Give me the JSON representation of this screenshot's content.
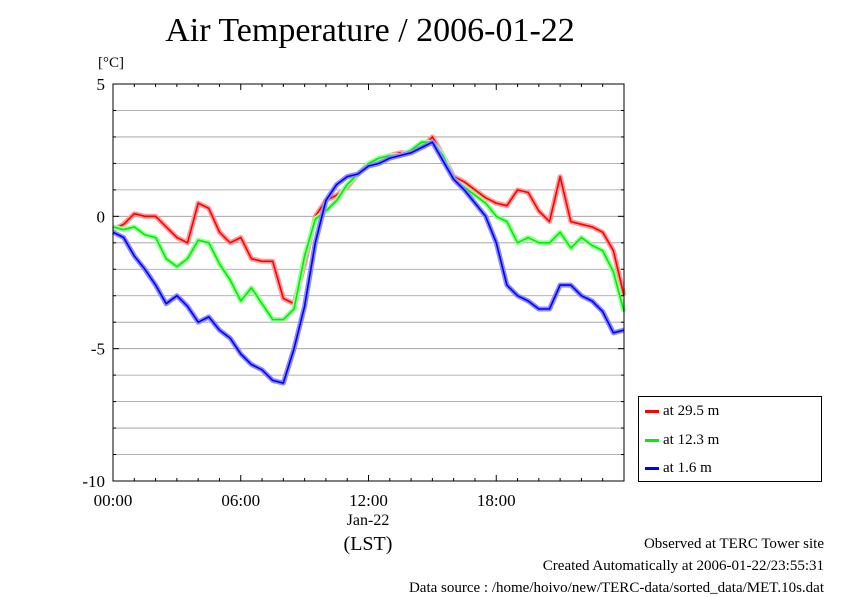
{
  "header": {
    "title": "Air Temperature / 2006-01-22",
    "unit": "[°C]"
  },
  "footer": {
    "line1": "Observed at TERC Tower site",
    "line2": "Created Automatically at 2006-01-22/23:55:31",
    "line3": "Data source : /home/hoivo/new/TERC-data/sorted_data/MET.10s.dat"
  },
  "axis": {
    "date_label": "Jan-22",
    "time_zone_label": "(LST)"
  },
  "legend": {
    "items": [
      {
        "label": "at 29.5 m",
        "color": "#ff0000"
      },
      {
        "label": "at 12.3 m",
        "color": "#00ee00"
      },
      {
        "label": "at 1.6 m",
        "color": "#0000ff"
      }
    ]
  },
  "chart_data": {
    "type": "line",
    "title": "Air Temperature / 2006-01-22",
    "ylabel": "[°C]",
    "xlabel": "(LST)",
    "xlim": [
      0,
      24
    ],
    "ylim": [
      -10,
      5
    ],
    "x_ticks": [
      0,
      6,
      12,
      18
    ],
    "x_tick_labels": [
      "00:00",
      "06:00",
      "12:00",
      "18:00"
    ],
    "y_ticks": [
      5,
      0,
      -5,
      -10
    ],
    "y_tick_labels": [
      "5",
      "0",
      "-5",
      "-10"
    ],
    "grid": true,
    "legend_position": "right-bottom-outside",
    "x": [
      0,
      0.5,
      1,
      1.5,
      2,
      2.5,
      3,
      3.5,
      4,
      4.5,
      5,
      5.5,
      6,
      6.5,
      7,
      7.5,
      8,
      8.5,
      9,
      9.5,
      10,
      10.5,
      11,
      11.5,
      12,
      12.5,
      13,
      13.5,
      14,
      14.5,
      15,
      15.5,
      16,
      16.5,
      17,
      17.5,
      18,
      18.5,
      19,
      19.5,
      20,
      20.5,
      21,
      21.5,
      22,
      22.5,
      23,
      23.5,
      24
    ],
    "series": [
      {
        "name": "at 29.5 m",
        "color": "#ff0000",
        "values": [
          -0.5,
          -0.3,
          0.1,
          0.0,
          0.0,
          -0.4,
          -0.8,
          -1.0,
          0.5,
          0.3,
          -0.6,
          -1.0,
          -0.8,
          -1.6,
          -1.7,
          -1.7,
          -3.1,
          -3.3,
          -1.8,
          0.0,
          0.6,
          0.8,
          1.1,
          1.6,
          2.0,
          2.1,
          2.3,
          2.4,
          2.4,
          2.6,
          3.0,
          2.3,
          1.5,
          1.3,
          1.0,
          0.7,
          0.5,
          0.4,
          1.0,
          0.9,
          0.2,
          -0.2,
          1.5,
          -0.2,
          -0.3,
          -0.4,
          -0.6,
          -1.3,
          -3.0
        ]
      },
      {
        "name": "at 12.3 m",
        "color": "#00ee00",
        "values": [
          -0.4,
          -0.5,
          -0.4,
          -0.7,
          -0.8,
          -1.6,
          -1.9,
          -1.6,
          -0.9,
          -1.0,
          -1.8,
          -2.4,
          -3.2,
          -2.7,
          -3.3,
          -3.9,
          -3.9,
          -3.5,
          -1.5,
          -0.1,
          0.2,
          0.6,
          1.2,
          1.6,
          2.0,
          2.2,
          2.3,
          2.3,
          2.5,
          2.8,
          2.8,
          2.3,
          1.4,
          1.1,
          0.8,
          0.5,
          0.0,
          -0.2,
          -1.0,
          -0.8,
          -1.0,
          -1.0,
          -0.6,
          -1.2,
          -0.8,
          -1.1,
          -1.3,
          -2.1,
          -3.6
        ]
      },
      {
        "name": "at 1.6 m",
        "color": "#0000ff",
        "values": [
          -0.6,
          -0.8,
          -1.5,
          -2.0,
          -2.6,
          -3.3,
          -3.0,
          -3.4,
          -4.0,
          -3.8,
          -4.3,
          -4.6,
          -5.2,
          -5.6,
          -5.8,
          -6.2,
          -6.3,
          -5.0,
          -3.4,
          -1.0,
          0.6,
          1.2,
          1.5,
          1.6,
          1.9,
          2.0,
          2.2,
          2.3,
          2.4,
          2.6,
          2.8,
          2.1,
          1.4,
          1.0,
          0.5,
          0.0,
          -1.0,
          -2.6,
          -3.0,
          -3.2,
          -3.5,
          -3.5,
          -2.6,
          -2.6,
          -3.0,
          -3.2,
          -3.6,
          -4.4,
          -4.3
        ]
      }
    ]
  }
}
